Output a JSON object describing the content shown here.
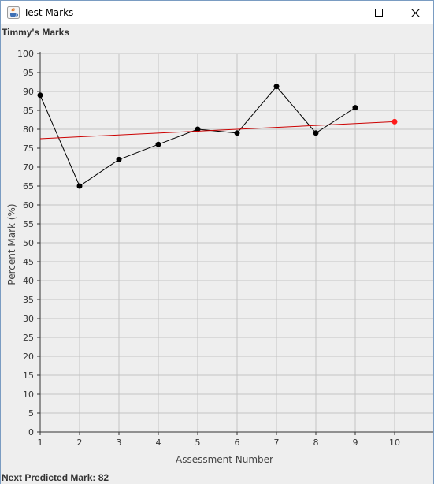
{
  "window": {
    "title": "Test Marks",
    "icon": "java-coffee-icon"
  },
  "controls": {
    "minimize": "minimize-icon",
    "maximize": "maximize-icon",
    "close": "close-icon"
  },
  "chart_title": "Timmy's Marks",
  "predicted_text": "Next Predicted Mark: 82",
  "chart_data": {
    "type": "line",
    "title": "Timmy's Marks",
    "xlabel": "Assessment Number",
    "ylabel": "Percent Mark (%)",
    "xlim": [
      1,
      10
    ],
    "ylim": [
      0,
      100
    ],
    "x_ticks": [
      1,
      2,
      3,
      4,
      5,
      6,
      7,
      8,
      9,
      10
    ],
    "y_ticks": [
      0,
      5,
      10,
      15,
      20,
      25,
      30,
      35,
      40,
      45,
      50,
      55,
      60,
      65,
      70,
      75,
      80,
      85,
      90,
      95,
      100
    ],
    "grid": true,
    "series": [
      {
        "x": [
          1,
          2,
          3,
          4,
          5,
          6,
          7,
          8,
          9
        ],
        "values": [
          89,
          65,
          72,
          76,
          80,
          79,
          91.3,
          79,
          85.7
        ],
        "color": "#000000"
      },
      {
        "x": [
          1,
          10
        ],
        "values": [
          77.5,
          82
        ],
        "color": "#cc0000",
        "marker_at_end": true
      }
    ]
  }
}
